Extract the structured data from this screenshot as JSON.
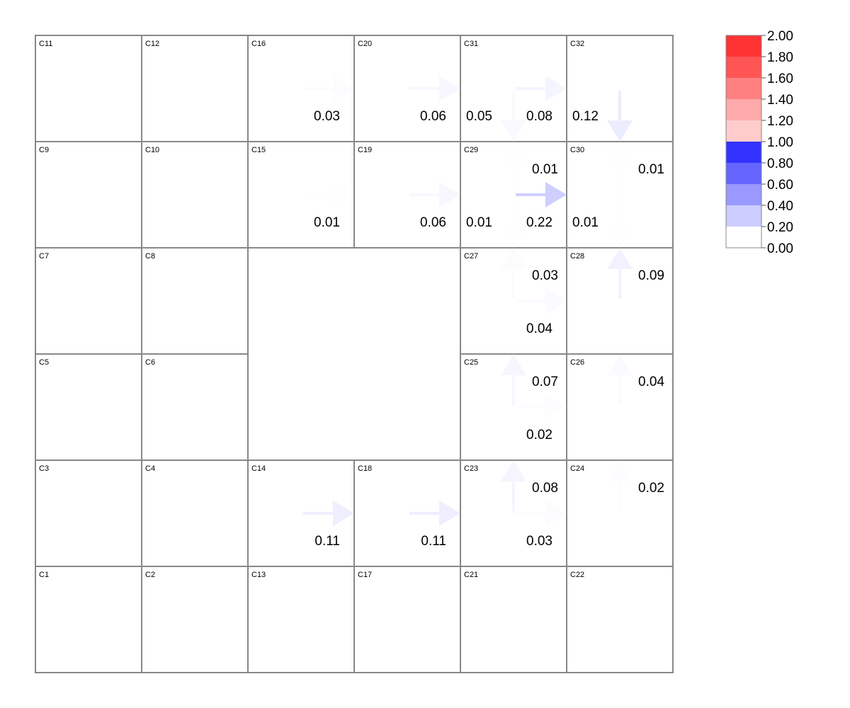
{
  "cells": [
    {
      "id": "C1",
      "col": 0,
      "row": 5
    },
    {
      "id": "C2",
      "col": 1,
      "row": 5
    },
    {
      "id": "C3",
      "col": 0,
      "row": 4
    },
    {
      "id": "C4",
      "col": 1,
      "row": 4
    },
    {
      "id": "C5",
      "col": 0,
      "row": 3
    },
    {
      "id": "C6",
      "col": 1,
      "row": 3
    },
    {
      "id": "C7",
      "col": 0,
      "row": 2
    },
    {
      "id": "C8",
      "col": 1,
      "row": 2
    },
    {
      "id": "C9",
      "col": 0,
      "row": 1
    },
    {
      "id": "C10",
      "col": 1,
      "row": 1
    },
    {
      "id": "C11",
      "col": 0,
      "row": 0
    },
    {
      "id": "C12",
      "col": 1,
      "row": 0
    },
    {
      "id": "C13",
      "col": 2,
      "row": 5
    },
    {
      "id": "C14",
      "col": 2,
      "row": 4
    },
    {
      "id": "C15",
      "col": 2,
      "row": 1
    },
    {
      "id": "C16",
      "col": 2,
      "row": 0
    },
    {
      "id": "C17",
      "col": 3,
      "row": 5
    },
    {
      "id": "C18",
      "col": 3,
      "row": 4
    },
    {
      "id": "C19",
      "col": 3,
      "row": 1
    },
    {
      "id": "C20",
      "col": 3,
      "row": 0
    },
    {
      "id": "C21",
      "col": 4,
      "row": 5
    },
    {
      "id": "C22",
      "col": 5,
      "row": 5
    },
    {
      "id": "C23",
      "col": 4,
      "row": 4
    },
    {
      "id": "C24",
      "col": 5,
      "row": 4
    },
    {
      "id": "C25",
      "col": 4,
      "row": 3
    },
    {
      "id": "C26",
      "col": 5,
      "row": 3
    },
    {
      "id": "C27",
      "col": 4,
      "row": 2
    },
    {
      "id": "C28",
      "col": 5,
      "row": 2
    },
    {
      "id": "C29",
      "col": 4,
      "row": 1
    },
    {
      "id": "C30",
      "col": 5,
      "row": 1
    },
    {
      "id": "C31",
      "col": 4,
      "row": 0
    },
    {
      "id": "C32",
      "col": 5,
      "row": 0
    }
  ],
  "flows": [
    {
      "from": "C16",
      "to": "C20",
      "dir": "right",
      "value": 0.03,
      "label": "0.03"
    },
    {
      "from": "C20",
      "to": "C31",
      "dir": "right",
      "value": 0.06,
      "label": "0.06"
    },
    {
      "from": "C31",
      "to": "C32",
      "dir": "right",
      "value": 0.08,
      "label": "0.08"
    },
    {
      "from": "C31",
      "to": "C29",
      "dir": "down",
      "value": 0.05,
      "label": "0.05"
    },
    {
      "from": "C32",
      "to": "C30",
      "dir": "down",
      "value": 0.12,
      "label": "0.12"
    },
    {
      "from": "C15",
      "to": "C19",
      "dir": "right",
      "value": 0.01,
      "label": "0.01"
    },
    {
      "from": "C19",
      "to": "C29",
      "dir": "right",
      "value": 0.06,
      "label": "0.06"
    },
    {
      "from": "C29",
      "to": "C30",
      "dir": "right",
      "value": 0.22,
      "label": "0.22"
    },
    {
      "from": "C29",
      "to": "C31",
      "dir": "up",
      "value": 0.01,
      "label": "0.01"
    },
    {
      "from": "C30",
      "to": "C32",
      "dir": "up",
      "value": 0.01,
      "label": "0.01"
    },
    {
      "from": "C29",
      "to": "C27",
      "dir": "down",
      "value": 0.01,
      "label": "0.01"
    },
    {
      "from": "C30",
      "to": "C28",
      "dir": "down",
      "value": 0.01,
      "label": "0.01"
    },
    {
      "from": "C27",
      "to": "C29",
      "dir": "up",
      "value": 0.03,
      "label": "0.03"
    },
    {
      "from": "C28",
      "to": "C30",
      "dir": "up",
      "value": 0.09,
      "label": "0.09"
    },
    {
      "from": "C27",
      "to": "C28",
      "dir": "right",
      "value": 0.04,
      "label": "0.04"
    },
    {
      "from": "C25",
      "to": "C27",
      "dir": "up",
      "value": 0.07,
      "label": "0.07"
    },
    {
      "from": "C26",
      "to": "C28",
      "dir": "up",
      "value": 0.04,
      "label": "0.04"
    },
    {
      "from": "C25",
      "to": "C26",
      "dir": "right",
      "value": 0.02,
      "label": "0.02"
    },
    {
      "from": "C23",
      "to": "C25",
      "dir": "up",
      "value": 0.08,
      "label": "0.08"
    },
    {
      "from": "C24",
      "to": "C26",
      "dir": "up",
      "value": 0.02,
      "label": "0.02"
    },
    {
      "from": "C23",
      "to": "C24",
      "dir": "right",
      "value": 0.03,
      "label": "0.03"
    },
    {
      "from": "C14",
      "to": "C18",
      "dir": "right",
      "value": 0.11,
      "label": "0.11"
    },
    {
      "from": "C18",
      "to": "C23",
      "dir": "right",
      "value": 0.11,
      "label": "0.11"
    }
  ],
  "legend": {
    "ticks": [
      "2.00",
      "1.80",
      "1.60",
      "1.40",
      "1.20",
      "1.00",
      "0.80",
      "0.60",
      "0.40",
      "0.20",
      "0.00"
    ],
    "bands": [
      {
        "min": 1.8,
        "max": 2.0,
        "color": "#ff3333"
      },
      {
        "min": 1.6,
        "max": 1.8,
        "color": "#ff5555"
      },
      {
        "min": 1.4,
        "max": 1.6,
        "color": "#ff8080"
      },
      {
        "min": 1.2,
        "max": 1.4,
        "color": "#ffaaaa"
      },
      {
        "min": 1.0,
        "max": 1.2,
        "color": "#ffcccc"
      },
      {
        "min": 0.8,
        "max": 1.0,
        "color": "#3333ff"
      },
      {
        "min": 0.6,
        "max": 0.8,
        "color": "#6666ff"
      },
      {
        "min": 0.4,
        "max": 0.6,
        "color": "#9999ff"
      },
      {
        "min": 0.2,
        "max": 0.4,
        "color": "#ccccff"
      },
      {
        "min": 0.0,
        "max": 0.2,
        "color": "#ffffff"
      }
    ]
  },
  "colors": {
    "grid_stroke": "#888888",
    "arrow_base": "#ccccff"
  }
}
